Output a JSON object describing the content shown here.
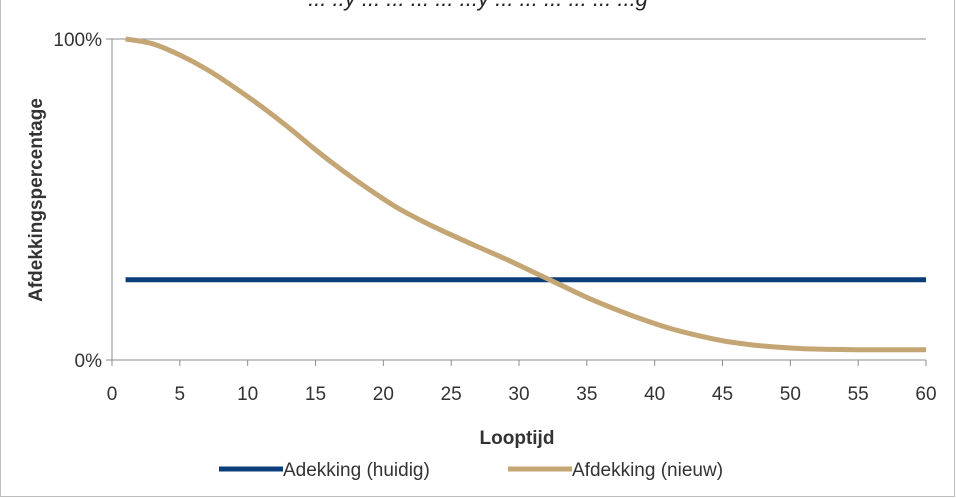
{
  "chart_data": {
    "type": "line",
    "title": "... ..y ... ... ... ... ...y ... ... ... ... ... ...g",
    "xlabel": "Looptijd",
    "ylabel": "Afdekkingspercentage",
    "xlim": [
      0,
      60
    ],
    "x_ticks": [
      "0",
      "5",
      "10",
      "15",
      "20",
      "25",
      "30",
      "35",
      "40",
      "45",
      "50",
      "55",
      "60"
    ],
    "ylim": [
      0,
      100
    ],
    "y_ticks": [
      "0%",
      "100%"
    ],
    "grid": "horizontal",
    "legend": "bottom",
    "series": [
      {
        "name": "Adekking (huidig)",
        "color": "#0b3d7a",
        "x": [
          1,
          60
        ],
        "y": [
          25,
          25
        ]
      },
      {
        "name": "Afdekking (nieuw)",
        "color": "#c4a574",
        "x": [
          1,
          3,
          5,
          7,
          9,
          11,
          13,
          15,
          17,
          19,
          21,
          23,
          25,
          27,
          29,
          31,
          33,
          35,
          37,
          39,
          41,
          43,
          45,
          47,
          49,
          51,
          53,
          55,
          57,
          60
        ],
        "y": [
          100,
          98.5,
          95,
          90.5,
          85,
          79,
          72.5,
          65.5,
          59,
          53,
          47.5,
          43,
          39,
          35.2,
          31.5,
          27.5,
          23.5,
          19.5,
          16,
          12.8,
          10,
          7.8,
          6,
          4.8,
          4.0,
          3.5,
          3.3,
          3.2,
          3.2,
          3.2
        ]
      }
    ]
  }
}
